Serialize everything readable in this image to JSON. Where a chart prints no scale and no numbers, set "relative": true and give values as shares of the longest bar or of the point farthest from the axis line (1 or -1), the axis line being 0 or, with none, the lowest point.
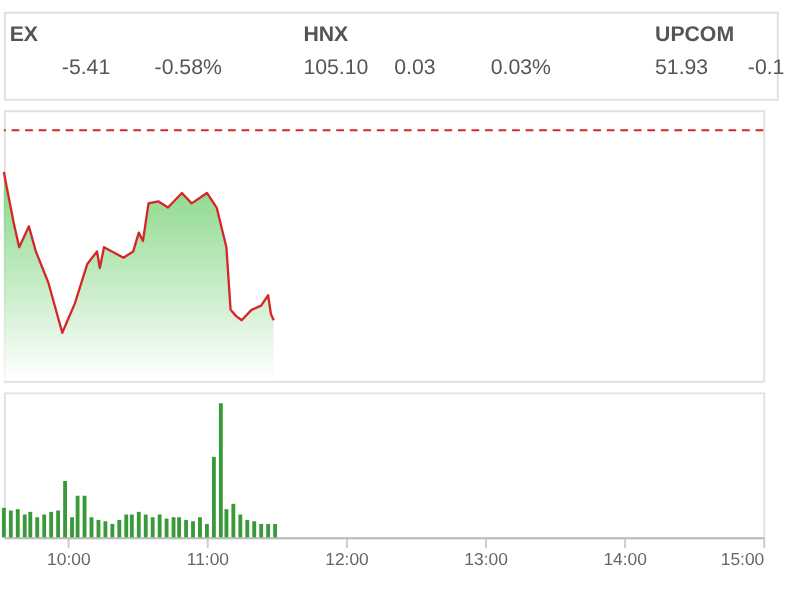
{
  "chart_data": [
    {
      "type": "other",
      "annotations": [
        "EX",
        "-5.41",
        "-0.58%",
        "HNX",
        "105.10",
        "0.03",
        "0.03%",
        "UPCOM",
        "51.93",
        "-0.1"
      ]
    },
    {
      "type": "area",
      "relative": true,
      "xlim": [
        9.54,
        15
      ],
      "tick_labels": false,
      "x": [
        9.54,
        9.56,
        9.61,
        9.65,
        9.72,
        9.77,
        9.86,
        9.96,
        10.05,
        10.14,
        10.21,
        10.23,
        10.26,
        10.4,
        10.47,
        10.51,
        10.54,
        10.58,
        10.65,
        10.72,
        10.82,
        10.89,
        11.0,
        11.07,
        11.14,
        11.17,
        11.21,
        11.25,
        11.32,
        11.39,
        11.44,
        11.46,
        11.48
      ],
      "series": [
        {
          "color": "#d62728",
          "values": [
            1.0,
            0.93,
            0.76,
            0.64,
            0.74,
            0.62,
            0.47,
            0.23,
            0.37,
            0.56,
            0.62,
            0.54,
            0.64,
            0.59,
            0.62,
            0.71,
            0.67,
            0.85,
            0.86,
            0.83,
            0.9,
            0.85,
            0.9,
            0.83,
            0.64,
            0.34,
            0.31,
            0.29,
            0.34,
            0.36,
            0.41,
            0.32,
            0.29
          ]
        }
      ],
      "ref_lines": [
        {
          "axis": "y",
          "value": 1.2,
          "color": "#d62728",
          "line_style": "dashed"
        }
      ]
    },
    {
      "type": "bar",
      "relative": true,
      "xlim": [
        9.54,
        15
      ],
      "tick_labels": "x",
      "xticks": [
        {
          "value": 10,
          "label": "10:00"
        },
        {
          "value": 11,
          "label": "11:00"
        },
        {
          "value": 12,
          "label": "12:00"
        },
        {
          "value": 13,
          "label": "13:00"
        },
        {
          "value": 14,
          "label": "14:00"
        },
        {
          "value": 15,
          "label": "15:00"
        }
      ],
      "x": [
        9.54,
        9.59,
        9.64,
        9.69,
        9.73,
        9.78,
        9.83,
        9.88,
        9.93,
        9.98,
        10.03,
        10.07,
        10.12,
        10.17,
        10.22,
        10.27,
        10.32,
        10.37,
        10.42,
        10.46,
        10.51,
        10.56,
        10.61,
        10.66,
        10.71,
        10.76,
        10.8,
        10.85,
        10.9,
        10.95,
        11.0,
        11.05,
        11.1,
        11.14,
        11.19,
        11.24,
        11.29,
        11.34,
        11.39,
        11.44,
        11.49
      ],
      "series": [
        {
          "color": "#3a9a3a",
          "values": [
            0.22,
            0.2,
            0.21,
            0.17,
            0.19,
            0.15,
            0.17,
            0.19,
            0.2,
            0.42,
            0.15,
            0.31,
            0.31,
            0.15,
            0.13,
            0.12,
            0.1,
            0.13,
            0.17,
            0.17,
            0.19,
            0.17,
            0.15,
            0.17,
            0.14,
            0.15,
            0.15,
            0.13,
            0.12,
            0.15,
            0.1,
            0.6,
            1.0,
            0.21,
            0.25,
            0.17,
            0.13,
            0.12,
            0.1,
            0.1,
            0.1
          ]
        }
      ]
    }
  ]
}
